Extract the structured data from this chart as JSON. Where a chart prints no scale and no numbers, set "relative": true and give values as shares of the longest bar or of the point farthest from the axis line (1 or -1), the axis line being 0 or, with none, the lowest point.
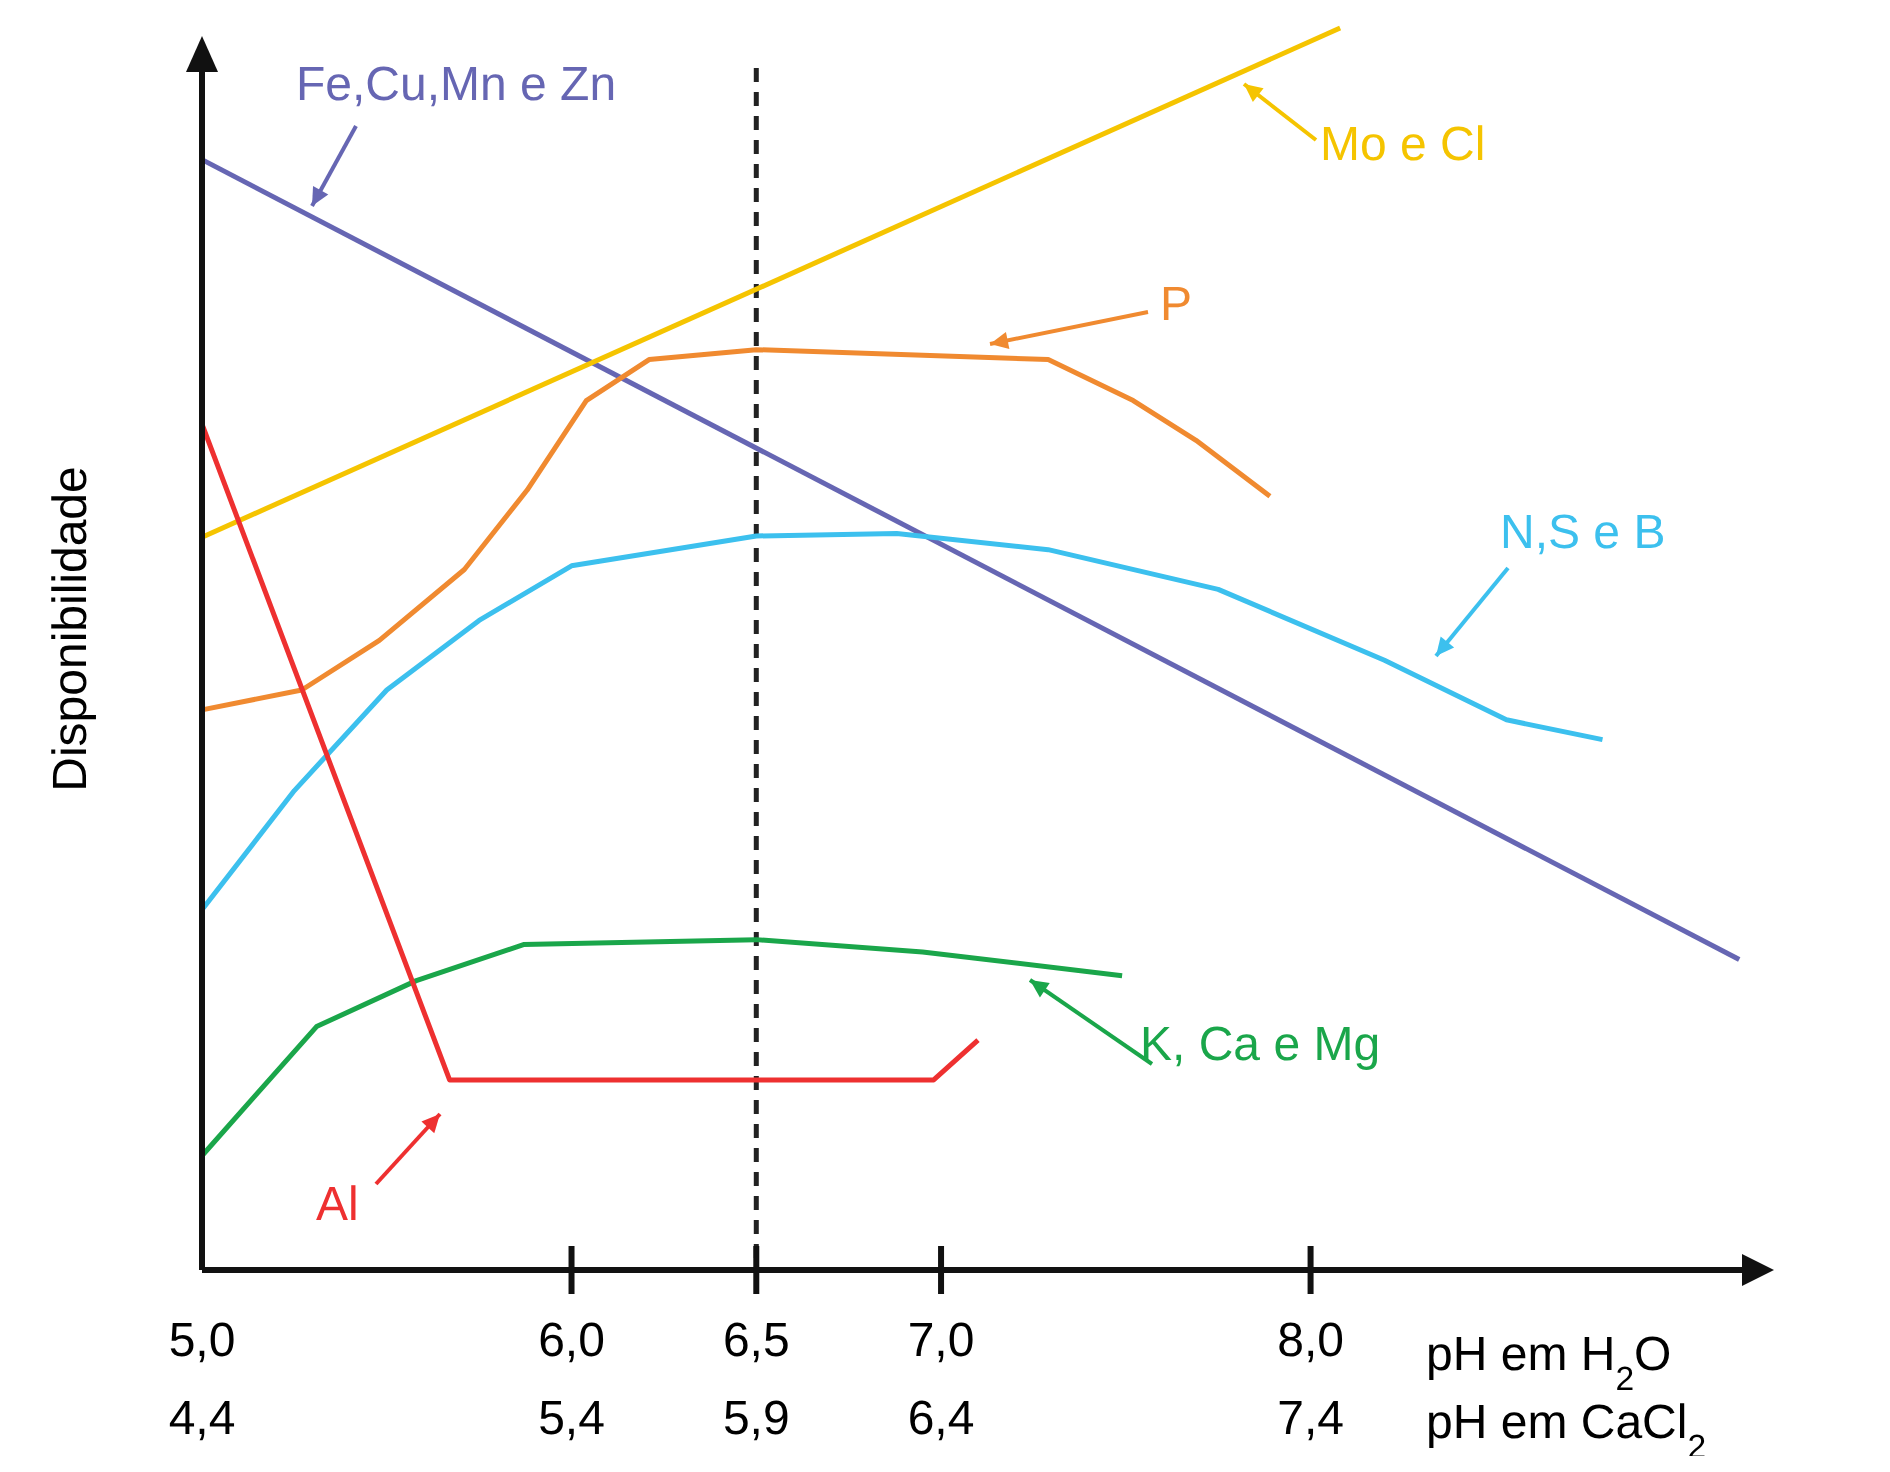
{
  "chart_data": {
    "type": "line",
    "relative": true,
    "ylabel": "Disponibilidade",
    "xlabel": "pH em H$_{2}$O",
    "x2label": "pH em CaCl$_{2}$",
    "xlim": [
      5.0,
      9.2
    ],
    "xticks": [
      {
        "value": 5.0,
        "label": "5,0"
      },
      {
        "value": 6.0,
        "label": "6,0"
      },
      {
        "value": 6.5,
        "label": "6,5"
      },
      {
        "value": 7.0,
        "label": "7,0"
      },
      {
        "value": 8.0,
        "label": "8,0"
      }
    ],
    "x2lim": [
      4.4,
      8.6
    ],
    "x2ticks": [
      {
        "value": 4.4,
        "label": "4,4"
      },
      {
        "value": 5.4,
        "label": "5,4"
      },
      {
        "value": 5.9,
        "label": "5,9"
      },
      {
        "value": 6.4,
        "label": "6,4"
      },
      {
        "value": 7.4,
        "label": "7,4"
      }
    ],
    "tick_labels": "x",
    "legend": "top right",
    "marker": "none",
    "line_style": "solid",
    "ref_lines": [
      {
        "axis": "x",
        "value": 6.5,
        "color": "#222222",
        "line_style": "dashed"
      }
    ],
    "series": [
      {
        "name": "Fe,Cu,Mn e Zn",
        "color": "#6666b3",
        "x": [
          5.0,
          9.16
        ],
        "values": [
          0.894,
          0.25
        ]
      },
      {
        "name": "Mo e Cl",
        "color": "#f5c400",
        "x": [
          5.0,
          8.08
        ],
        "values": [
          0.59,
          1.0
        ]
      },
      {
        "name": "P",
        "color": "#f08a30",
        "x": [
          5.0,
          5.27,
          5.48,
          5.71,
          5.88,
          6.04,
          6.21,
          6.5,
          7.29,
          7.52,
          7.69,
          7.89
        ],
        "values": [
          0.451,
          0.467,
          0.507,
          0.564,
          0.628,
          0.7,
          0.733,
          0.741,
          0.733,
          0.7,
          0.668,
          0.623
        ]
      },
      {
        "name": "N,S e B",
        "color": "#3cc0ee",
        "x": [
          5.0,
          5.25,
          5.5,
          5.75,
          6.0,
          6.5,
          6.88,
          7.29,
          7.75,
          8.2,
          8.53,
          8.79
        ],
        "values": [
          0.29,
          0.386,
          0.467,
          0.523,
          0.567,
          0.591,
          0.593,
          0.58,
          0.548,
          0.491,
          0.443,
          0.427
        ]
      },
      {
        "name": "K, Ca e Mg",
        "color": "#1aa64a",
        "x": [
          5.0,
          5.31,
          5.58,
          5.87,
          6.5,
          6.95,
          7.49
        ],
        "values": [
          0.092,
          0.196,
          0.233,
          0.262,
          0.266,
          0.256,
          0.237
        ]
      },
      {
        "name": "Al",
        "color": "#ee3030",
        "x": [
          5.0,
          5.67,
          6.98,
          7.1
        ],
        "values": [
          0.681,
          0.153,
          0.153,
          0.185
        ]
      }
    ]
  }
}
